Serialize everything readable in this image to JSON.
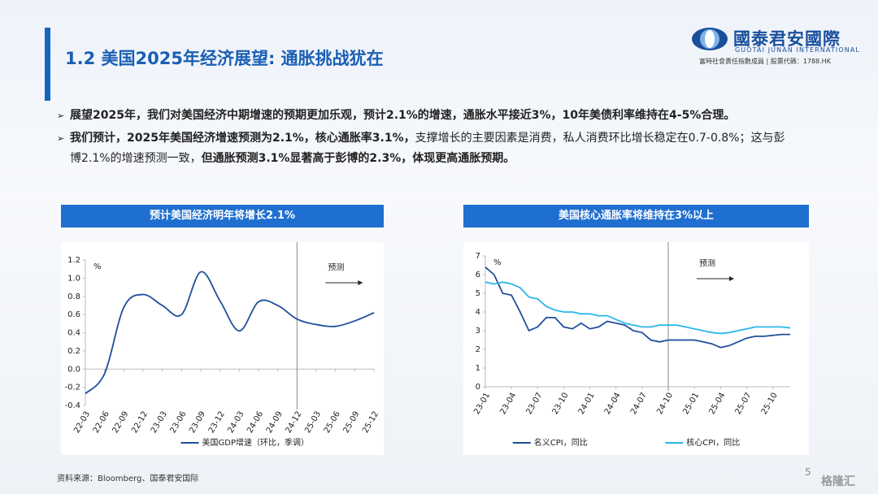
{
  "header": {
    "title": "1.2 美国2025年经济展望: 通胀挑战犹在",
    "logo_cn": "國泰君安國際",
    "logo_en": "GUOTAI JUNAN INTERNATIONAL",
    "logo_sub": "富時社會責任指數成員 | 股票代碼：1788.HK"
  },
  "bullets": [
    [
      {
        "text": "展望2025年，我们对美国经济中期增速的预期更加乐观，预计2.1%的增速，通胀水平接近3%，10年美债利率维持在4-5%合理。",
        "bold": true
      }
    ],
    [
      {
        "text": "我们预计，2025年美国经济增速预测为2.1%，核心通胀率3.1%，",
        "bold": true
      },
      {
        "text": "支撑增长的主要因素是消费，私人消费环比增长稳定在0.7-0.8%；这与彭博2.1%的增速预测一致，",
        "bold": false
      },
      {
        "text": "但通胀预测3.1%显著高于彭博的2.3%，体现更高通胀预期。",
        "bold": true
      }
    ]
  ],
  "chart_data": [
    {
      "type": "line",
      "title": "预计美国经济明年将增长2.1%",
      "unit_label": "%",
      "annotation": "预测",
      "forecast_from": "24-12",
      "smooth": true,
      "categories": [
        "22-03",
        "22-06",
        "22-09",
        "22-12",
        "23-03",
        "23-06",
        "23-09",
        "23-12",
        "24-03",
        "24-06",
        "24-09",
        "24-12",
        "25-03",
        "25-06",
        "25-09",
        "25-12"
      ],
      "series": [
        {
          "name": "美国GDP增速（环比，季调）",
          "color": "#1f4e9c",
          "values": [
            -0.27,
            -0.05,
            0.68,
            0.82,
            0.7,
            0.6,
            1.07,
            0.75,
            0.42,
            0.74,
            0.7,
            0.55,
            0.49,
            0.47,
            0.53,
            0.62
          ]
        }
      ],
      "ylim": [
        -0.4,
        1.2
      ],
      "yticks": [
        1.2,
        {
          "value": 1.0,
          "label": "1.0"
        },
        0.8,
        0.6,
        0.4,
        0.2,
        {
          "value": 0.0,
          "label": "0.0"
        },
        -0.2,
        -0.4
      ]
    },
    {
      "type": "line",
      "title": "美国核心通胀率将维持在3%以上",
      "unit_label": "%",
      "annotation": "预测",
      "forecast_from": "24-10",
      "smooth": false,
      "categories": [
        "23-01",
        null,
        null,
        "23-04",
        null,
        null,
        "23-07",
        null,
        null,
        "23-10",
        null,
        null,
        "24-01",
        null,
        null,
        "24-04",
        null,
        null,
        "24-07",
        null,
        null,
        "24-10",
        null,
        null,
        "25-01",
        null,
        null,
        "25-04",
        null,
        null,
        "25-07",
        null,
        null,
        "25-10",
        null,
        null
      ],
      "series": [
        {
          "name": "名义CPI，同比",
          "color": "#1f4e9c",
          "values": [
            6.4,
            6.0,
            5.0,
            4.9,
            4.0,
            3.0,
            3.2,
            3.7,
            3.7,
            3.2,
            3.1,
            3.4,
            3.1,
            3.2,
            3.5,
            3.4,
            3.3,
            3.0,
            2.9,
            2.5,
            2.4,
            2.5,
            2.5,
            2.5,
            2.5,
            2.4,
            2.3,
            2.1,
            2.2,
            2.4,
            2.6,
            2.7,
            2.7,
            2.75,
            2.8,
            2.8
          ]
        },
        {
          "name": "核心CPI，同比",
          "color": "#29b6e8",
          "values": [
            5.6,
            5.5,
            5.6,
            5.5,
            5.3,
            4.8,
            4.7,
            4.3,
            4.1,
            4.0,
            4.0,
            3.9,
            3.9,
            3.8,
            3.8,
            3.6,
            3.4,
            3.3,
            3.2,
            3.2,
            3.3,
            3.3,
            3.3,
            3.2,
            3.1,
            3.0,
            2.9,
            2.85,
            2.9,
            3.0,
            3.1,
            3.2,
            3.2,
            3.2,
            3.2,
            3.15
          ]
        }
      ],
      "ylim": [
        0,
        7
      ],
      "yticks": [
        7,
        6,
        5,
        4,
        3,
        2,
        1,
        0
      ]
    }
  ],
  "footer": {
    "source": "资料来源：Bloomberg、国泰君安国际",
    "page": "5",
    "watermark": "格隆汇"
  }
}
